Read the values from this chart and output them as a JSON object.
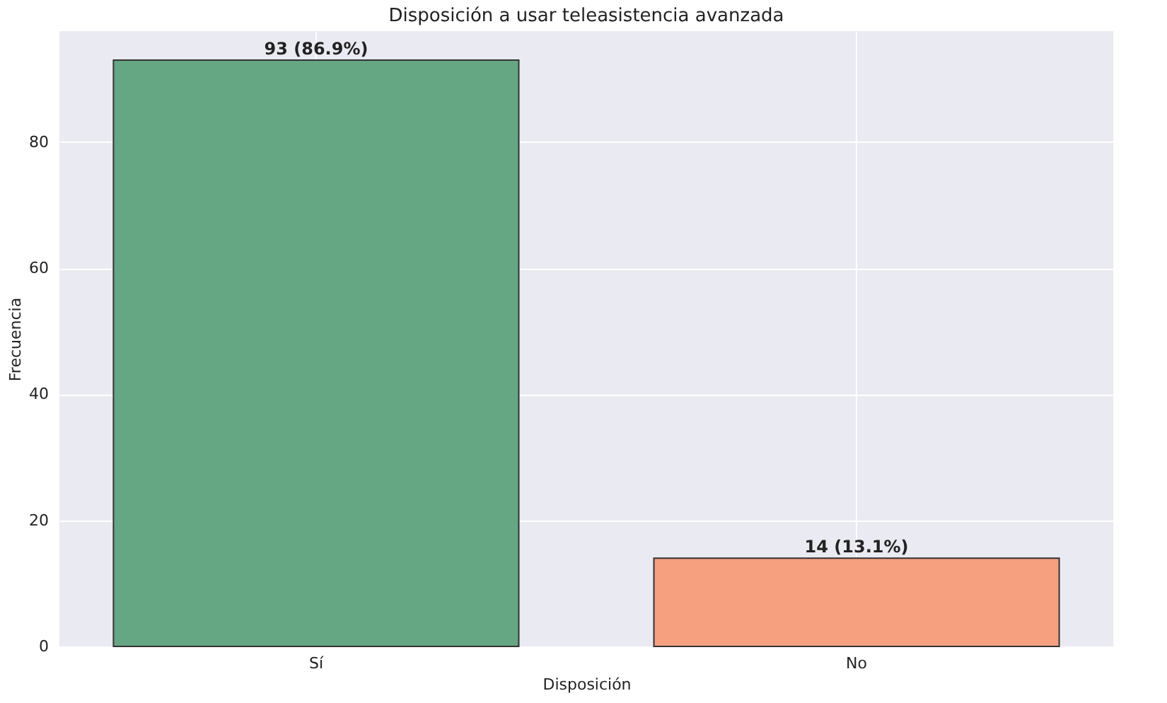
{
  "chart_data": {
    "type": "bar",
    "title": "Disposición a usar teleasistencia avanzada",
    "xlabel": "Disposición",
    "ylabel": "Frecuencia",
    "categories": [
      "Sí",
      "No"
    ],
    "values": [
      93,
      14
    ],
    "colors": [
      "#66a783",
      "#f6a07f"
    ],
    "value_labels": [
      "93 (86.9%)",
      "14 (13.1%)"
    ],
    "ylim": [
      0,
      97.6
    ],
    "yticks": [
      0,
      20,
      40,
      60,
      80
    ],
    "grid": true,
    "legend": false
  }
}
